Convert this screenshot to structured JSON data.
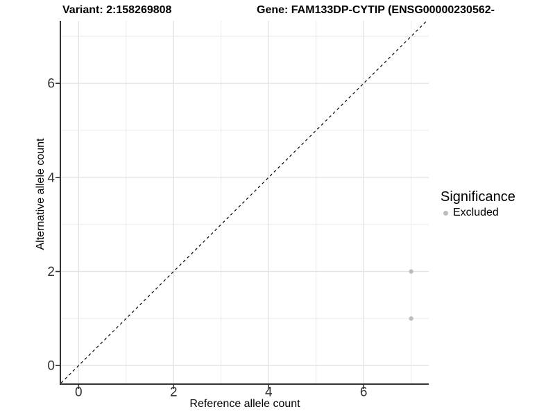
{
  "chart_data": {
    "type": "scatter",
    "title_left": "Variant: 2:158269808",
    "title_right": "Gene: FAM133DP-CYTIP (ENSG00000230562-",
    "xlabel": "Reference allele count",
    "ylabel": "Alternative allele count",
    "xlim": [
      -0.37,
      7.37
    ],
    "ylim": [
      -0.38,
      7.33
    ],
    "x_ticks": [
      0,
      2,
      4,
      6
    ],
    "x_tick_labels": [
      "0",
      "2",
      "4",
      "6"
    ],
    "y_ticks": [
      0,
      2,
      4,
      6
    ],
    "y_tick_labels": [
      "0",
      "2",
      "4",
      "6"
    ],
    "x_minor": [
      1,
      3,
      5,
      7
    ],
    "y_minor": [
      1,
      3,
      5,
      7
    ],
    "grid": true,
    "legend_position": "right",
    "series": [
      {
        "name": "Excluded",
        "color": "#bdbdbd",
        "points": [
          {
            "x": 7,
            "y": 1
          },
          {
            "x": 7,
            "y": 2
          }
        ]
      }
    ],
    "reference_line": {
      "type": "identity",
      "slope": 1,
      "intercept": 0,
      "style": "dashed",
      "color": "#000000"
    },
    "legend": {
      "title": "Significance",
      "items": [
        {
          "label": "Excluded",
          "color": "#bdbdbd"
        }
      ]
    },
    "colors": {
      "point": "#bdbdbd",
      "grid_major": "#e2e2e2",
      "grid_minor": "#ececec",
      "axis_line": "#333333",
      "tick_text": "#333333",
      "dashed_line": "#000000"
    }
  }
}
